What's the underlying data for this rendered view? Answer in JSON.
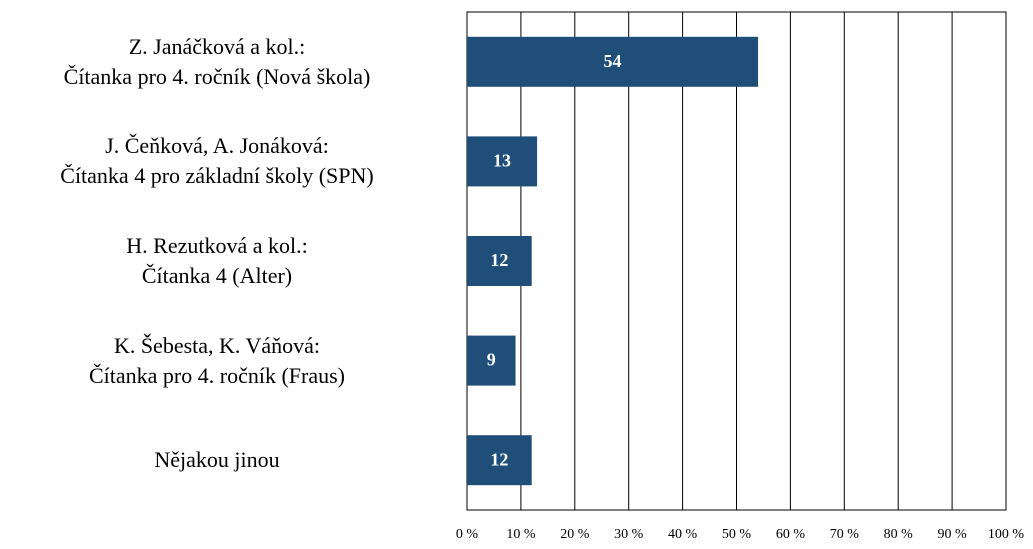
{
  "chart_data": {
    "type": "bar",
    "orientation": "horizontal",
    "categories": [
      "Z. Janáčková a kol.:\nČítanka pro 4. ročník (Nová škola)",
      "J. Čeňková, A. Jonáková:\nČítanka 4 pro základní školy (SPN)",
      "H. Rezutková a kol.:\nČítanka 4 (Alter)",
      "K. Šebesta, K. Váňová:\nČítanka pro 4. ročník (Fraus)",
      "Nějakou jinou"
    ],
    "values": [
      54,
      13,
      12,
      9,
      12
    ],
    "color": "#1f4e79",
    "xlim": [
      0,
      100
    ],
    "xticks": [
      {
        "value": 0,
        "label": "0 %"
      },
      {
        "value": 10,
        "label": "10 %"
      },
      {
        "value": 20,
        "label": "20 %"
      },
      {
        "value": 30,
        "label": "30 %"
      },
      {
        "value": 40,
        "label": "40 %"
      },
      {
        "value": 50,
        "label": "50 %"
      },
      {
        "value": 60,
        "label": "60 %"
      },
      {
        "value": 70,
        "label": "70 %"
      },
      {
        "value": 80,
        "label": "80 %"
      },
      {
        "value": 90,
        "label": "90 %"
      },
      {
        "value": 100,
        "label": "100 %"
      }
    ],
    "grid": true
  }
}
